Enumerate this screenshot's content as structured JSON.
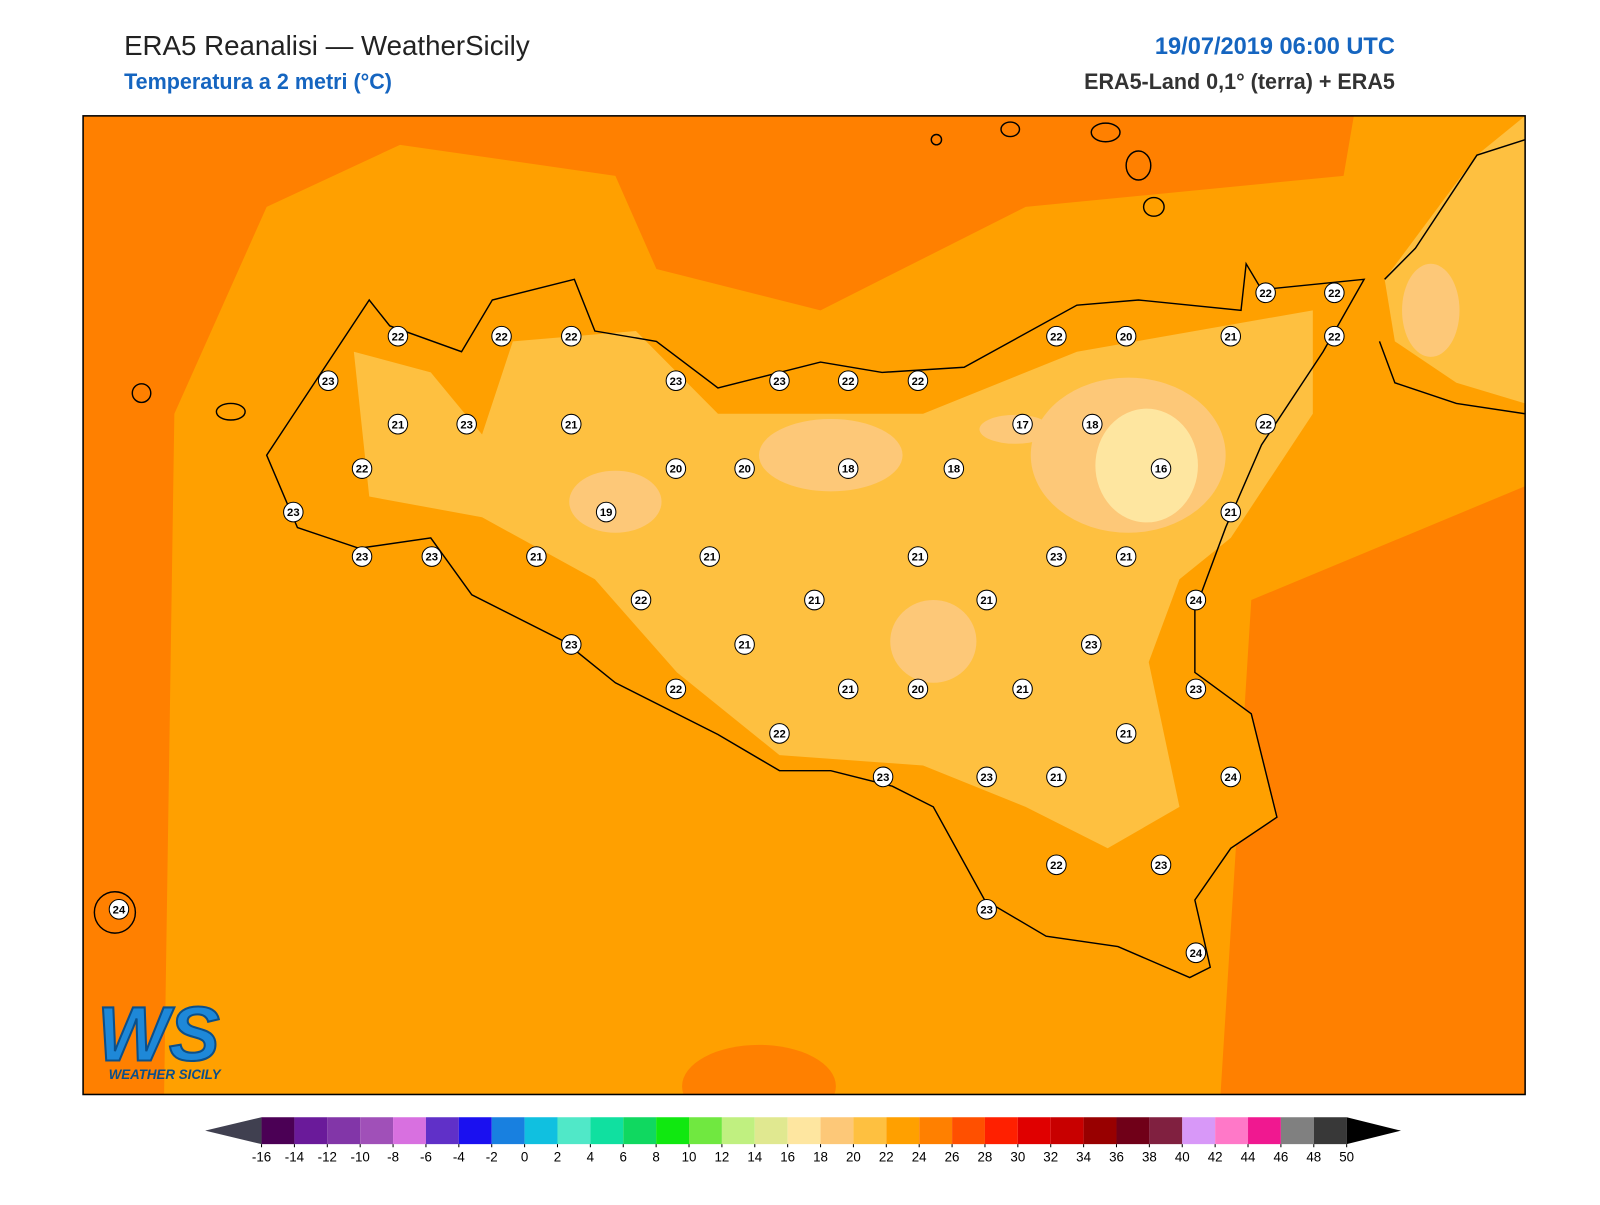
{
  "header": {
    "title": "ERA5 Reanalisi — WeatherSicily",
    "subtitle": "Temperatura a 2 metri (°C)",
    "datetime": "19/07/2019 06:00 UTC",
    "source": "ERA5-Land 0,1° (terra) + ERA5"
  },
  "stations": [
    22,
    22,
    22,
    23,
    23,
    23,
    22,
    22,
    22,
    20,
    21,
    22,
    22,
    22,
    21,
    23,
    21,
    17,
    18,
    22,
    22,
    20,
    20,
    18,
    18,
    16,
    23,
    19,
    21,
    23,
    23,
    21,
    21,
    21,
    23,
    21,
    22,
    21,
    21,
    24,
    23,
    21,
    23,
    22,
    21,
    20,
    21,
    23,
    22,
    21,
    23,
    23,
    21,
    24,
    22,
    23,
    23,
    24,
    24
  ],
  "colorbar": {
    "ticks": [
      -16,
      -14,
      -12,
      -10,
      -8,
      -6,
      -4,
      -2,
      0,
      2,
      4,
      6,
      8,
      10,
      12,
      14,
      16,
      18,
      20,
      22,
      24,
      26,
      28,
      30,
      32,
      34,
      36,
      38,
      40,
      42,
      44,
      46,
      48,
      50
    ],
    "colors": [
      "#4b0055",
      "#6a1a9a",
      "#8236a8",
      "#a050b8",
      "#d870e0",
      "#6030c8",
      "#1a10f0",
      "#1880e0",
      "#10c0e0",
      "#50e8c8",
      "#10e0a0",
      "#10d860",
      "#10e810",
      "#70e840",
      "#c0f080",
      "#e0e890",
      "#fee6a0",
      "#fdc878",
      "#fec040",
      "#ffa000",
      "#ff8000",
      "#ff5000",
      "#ff2000",
      "#e00000",
      "#c80000",
      "#980000",
      "#700018",
      "#802040",
      "#d898f8",
      "#ff78c8",
      "#f01890",
      "#808080",
      "#383838"
    ],
    "under_color": "#404050",
    "over_color": "#000000"
  },
  "logo": {
    "text": "WS",
    "subtext": "WEATHER SICILY"
  }
}
